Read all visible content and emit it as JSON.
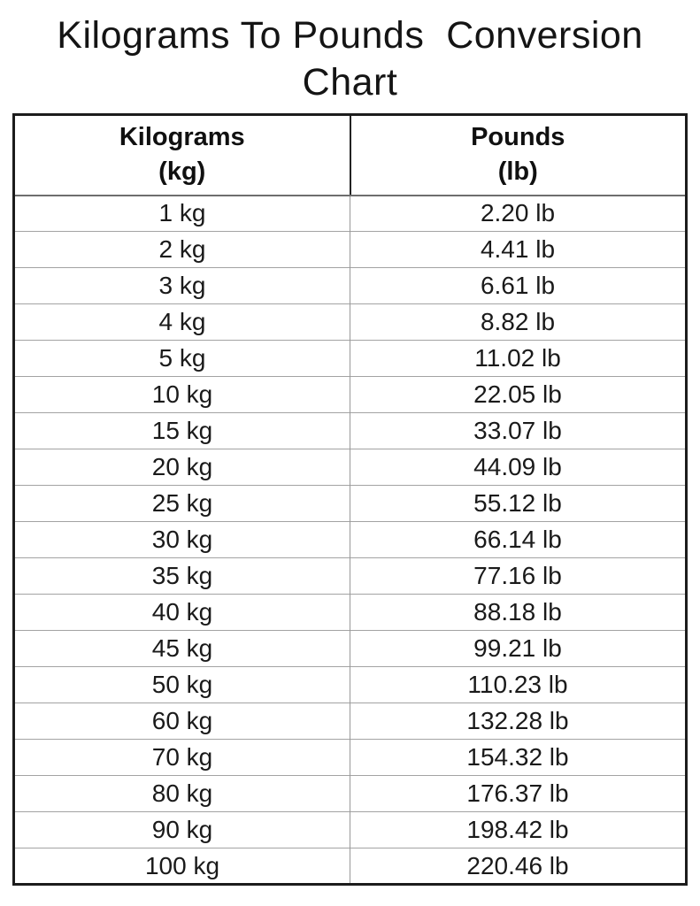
{
  "title": "Kilograms To Pounds  Conversion\nChart",
  "table": {
    "headers": [
      {
        "line1": "Kilograms",
        "line2": "(kg)"
      },
      {
        "line1": "Pounds",
        "line2": "(lb)"
      }
    ],
    "rows": [
      {
        "kg": "1 kg",
        "lb": "2.20 lb"
      },
      {
        "kg": "2 kg",
        "lb": "4.41 lb"
      },
      {
        "kg": "3 kg",
        "lb": "6.61 lb"
      },
      {
        "kg": "4 kg",
        "lb": "8.82 lb"
      },
      {
        "kg": "5 kg",
        "lb": "11.02 lb"
      },
      {
        "kg": "10 kg",
        "lb": "22.05 lb"
      },
      {
        "kg": "15 kg",
        "lb": "33.07 lb"
      },
      {
        "kg": "20 kg",
        "lb": "44.09 lb"
      },
      {
        "kg": "25 kg",
        "lb": "55.12 lb"
      },
      {
        "kg": "30 kg",
        "lb": "66.14 lb"
      },
      {
        "kg": "35 kg",
        "lb": "77.16 lb"
      },
      {
        "kg": "40 kg",
        "lb": "88.18 lb"
      },
      {
        "kg": "45 kg",
        "lb": "99.21 lb"
      },
      {
        "kg": "50 kg",
        "lb": "110.23 lb"
      },
      {
        "kg": "60 kg",
        "lb": "132.28 lb"
      },
      {
        "kg": "70 kg",
        "lb": "154.32 lb"
      },
      {
        "kg": "80 kg",
        "lb": "176.37 lb"
      },
      {
        "kg": "90 kg",
        "lb": "198.42 lb"
      },
      {
        "kg": "100 kg",
        "lb": "220.46 lb"
      }
    ]
  },
  "colors": {
    "text": "#141414",
    "outer_border": "#1c1c1c",
    "row_divider": "#a3a3a3",
    "column_divider": "#999999",
    "background": "#ffffff"
  },
  "chart_data": {
    "type": "table",
    "title": "Kilograms To Pounds Conversion Chart",
    "columns": [
      "Kilograms (kg)",
      "Pounds (lb)"
    ],
    "categories": [
      1,
      2,
      3,
      4,
      5,
      10,
      15,
      20,
      25,
      30,
      35,
      40,
      45,
      50,
      60,
      70,
      80,
      90,
      100
    ],
    "values": [
      2.2,
      4.41,
      6.61,
      8.82,
      11.02,
      22.05,
      33.07,
      44.09,
      55.12,
      66.14,
      77.16,
      88.18,
      99.21,
      110.23,
      132.28,
      154.32,
      176.37,
      198.42,
      220.46
    ],
    "units": {
      "x": "kg",
      "y": "lb"
    }
  }
}
